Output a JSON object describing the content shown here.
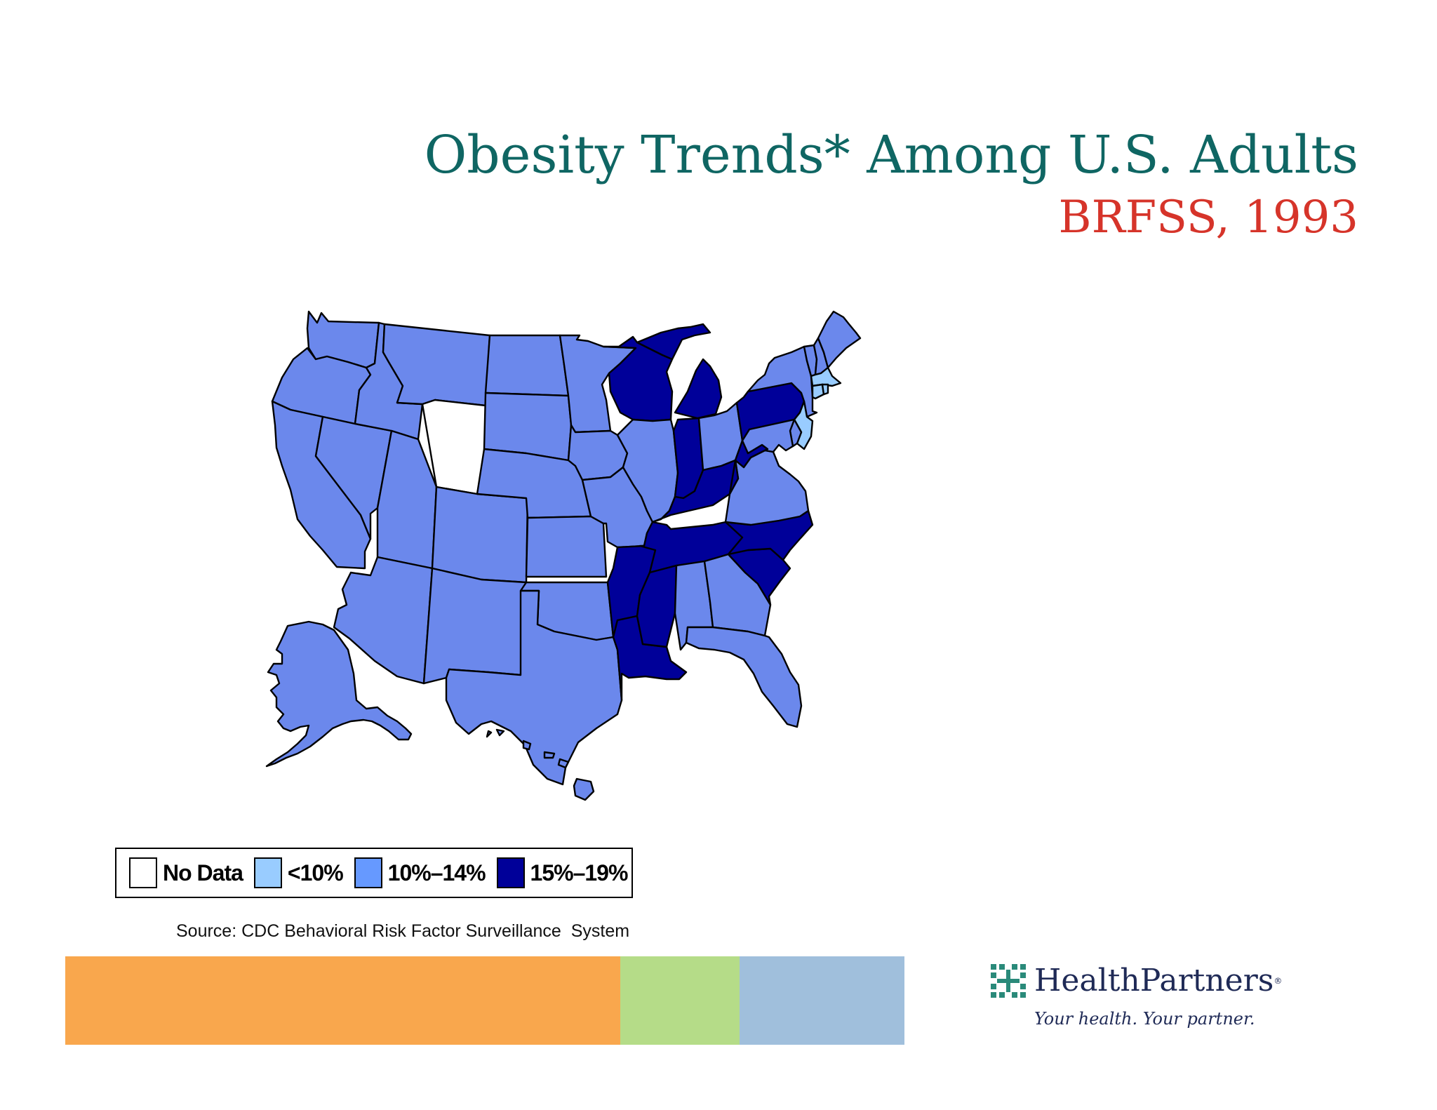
{
  "slide": {
    "title": "Obesity Trends* Among U.S. Adults",
    "subtitle": "BRFSS, 1993",
    "source": "Source: CDC Behavioral Risk Factor Surveillance  System"
  },
  "legend": {
    "items": [
      {
        "label": "No Data",
        "color": "#ffffff"
      },
      {
        "label": "<10%",
        "color": "#99ccff"
      },
      {
        "label": "10%–14%",
        "color": "#6699ff"
      },
      {
        "label": "15%–19%",
        "color": "#000099"
      }
    ]
  },
  "chart_data": {
    "type": "choropleth",
    "title": "Obesity Trends* Among U.S. Adults",
    "subtitle": "BRFSS, 1993",
    "categories": [
      "No Data",
      "<10%",
      "10%–14%",
      "15%–19%"
    ],
    "colors": {
      "No Data": "#ffffff",
      "<10%": "#99ccff",
      "10%–14%": "#6b88ec",
      "15%–19%": "#000099"
    },
    "states": {
      "WA": "10%–14%",
      "OR": "10%–14%",
      "CA": "10%–14%",
      "NV": "10%–14%",
      "ID": "10%–14%",
      "MT": "10%–14%",
      "WY": "No Data",
      "UT": "10%–14%",
      "AZ": "10%–14%",
      "CO": "10%–14%",
      "NM": "10%–14%",
      "ND": "10%–14%",
      "SD": "10%–14%",
      "NE": "10%–14%",
      "KS": "10%–14%",
      "OK": "10%–14%",
      "TX": "10%–14%",
      "MN": "10%–14%",
      "IA": "10%–14%",
      "MO": "10%–14%",
      "AR": "15%–19%",
      "LA": "15%–19%",
      "WI": "15%–19%",
      "IL": "10%–14%",
      "MI": "15%–19%",
      "IN": "15%–19%",
      "OH": "10%–14%",
      "KY": "15%–19%",
      "TN": "15%–19%",
      "MS": "15%–19%",
      "AL": "10%–14%",
      "GA": "10%–14%",
      "FL": "10%–14%",
      "SC": "15%–19%",
      "NC": "15%–19%",
      "VA": "10%–14%",
      "WV": "15%–19%",
      "PA": "15%–19%",
      "NY": "10%–14%",
      "VT": "10%–14%",
      "NH": "10%–14%",
      "ME": "10%–14%",
      "MA": "<10%",
      "CT": "<10%",
      "RI": "<10%",
      "NJ": "<10%",
      "DE": "10%–14%",
      "MD": "10%–14%",
      "AK": "10%–14%",
      "HI": "10%–14%"
    }
  },
  "footer": {
    "bands": [
      {
        "name": "orange",
        "color": "#f9a74d"
      },
      {
        "name": "green",
        "color": "#b5dc88"
      },
      {
        "name": "blue",
        "color": "#a0bfdc"
      }
    ],
    "logo": {
      "name": "HealthPartners",
      "reg": "®",
      "tagline": "Your health. Your partner."
    }
  }
}
